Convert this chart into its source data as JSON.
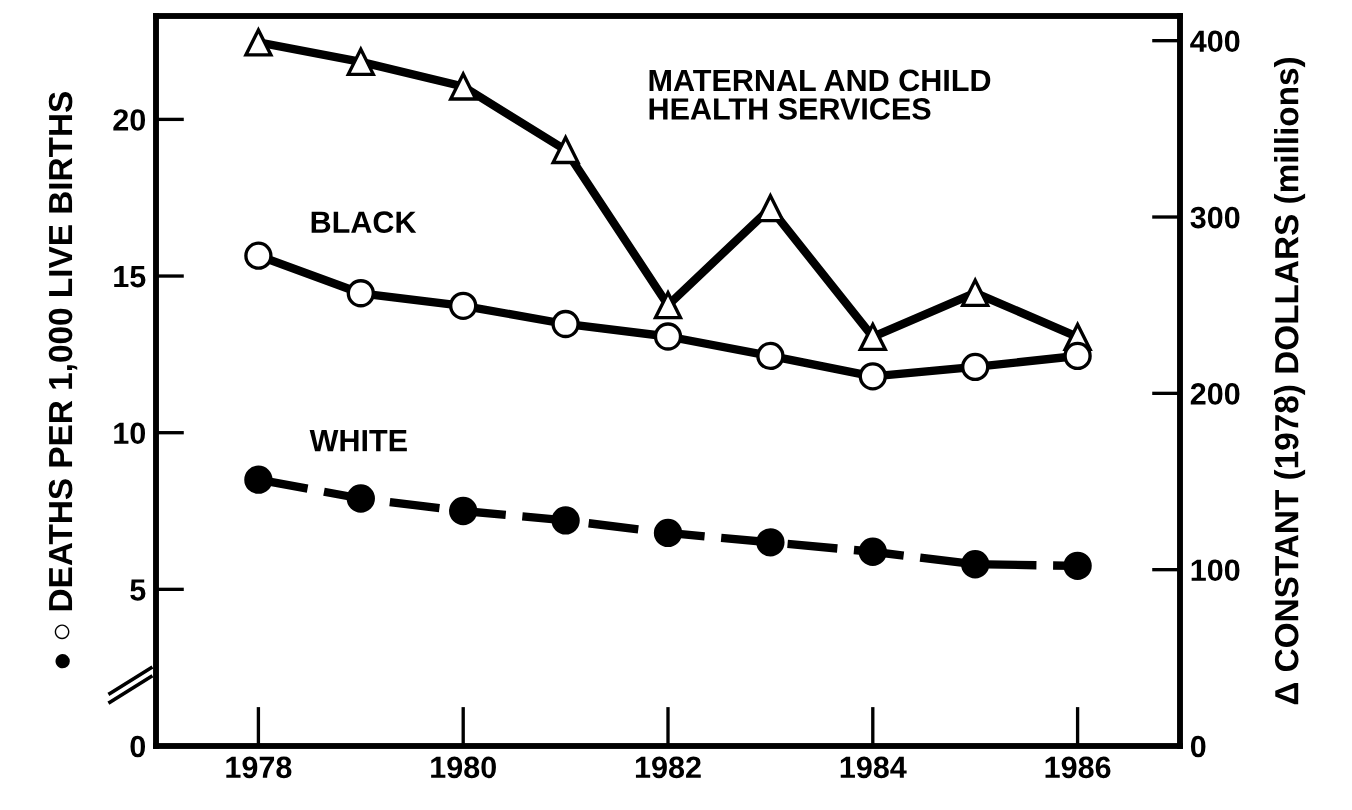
{
  "chart_data": {
    "type": "line",
    "ylabel": "● ○ DEATHS PER 1,000 LIVE BIRTHS",
    "y2label": "Δ CONSTANT (1978) DOLLARS (millions)",
    "x": [
      1978,
      1979,
      1980,
      1981,
      1982,
      1983,
      1984,
      1985,
      1986
    ],
    "series": [
      {
        "name": "MATERNAL AND CHILD\nHEALTH SERVICES",
        "color": "#000000",
        "axis": "y2",
        "marker": "triangle",
        "line_style": "solid",
        "values": [
          399,
          388,
          374,
          338,
          250,
          305,
          232,
          257,
          232
        ]
      },
      {
        "name": "BLACK",
        "color": "#000000",
        "marker": "circle",
        "line_style": "solid",
        "values": [
          15.65,
          14.45,
          14.05,
          13.47,
          13.07,
          12.45,
          11.8,
          12.1,
          12.45
        ]
      },
      {
        "name": "WHITE",
        "color": "#000000",
        "marker": "circle",
        "line_style": "dashed",
        "values": [
          8.5,
          7.9,
          7.5,
          7.2,
          6.8,
          6.5,
          6.2,
          5.8,
          5.75
        ]
      }
    ],
    "xlim": [
      1977,
      1987
    ],
    "xticks": [
      1978,
      1980,
      1982,
      1984,
      1986
    ],
    "ylim": [
      0,
      23.3
    ],
    "yticks": [
      0,
      5,
      10,
      15,
      20
    ],
    "y2lim": [
      0,
      414
    ],
    "y2ticks": [
      0,
      100,
      200,
      300,
      400
    ],
    "grid": false,
    "legend": false
  }
}
